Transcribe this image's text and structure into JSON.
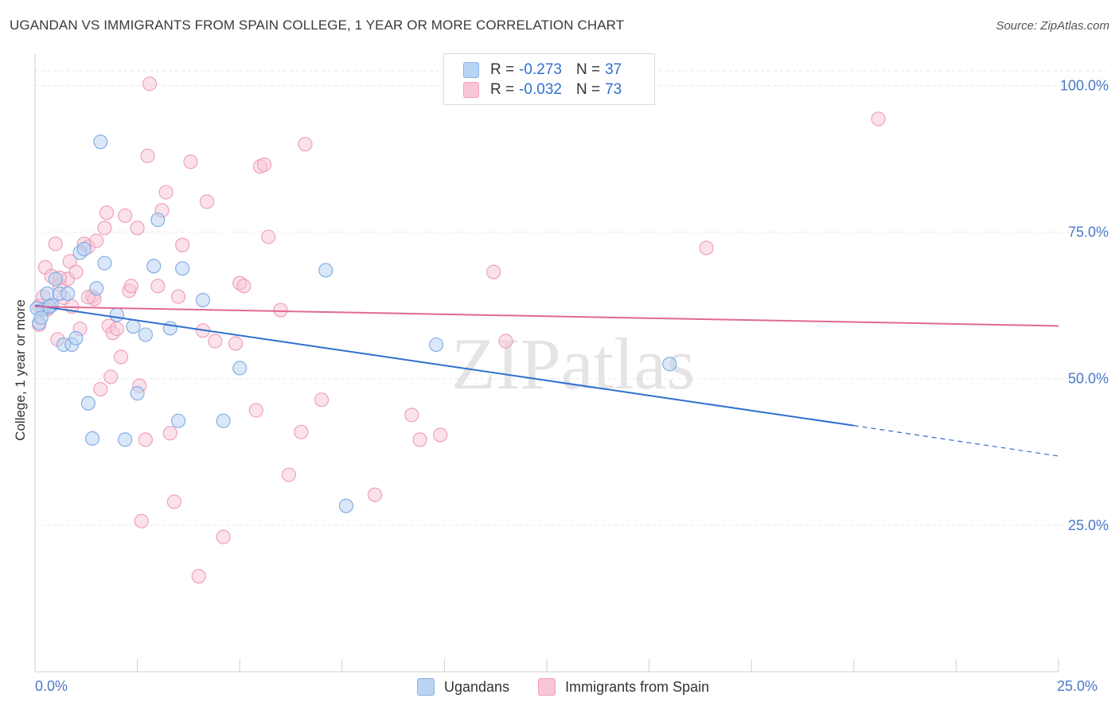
{
  "header": {
    "title": "UGANDAN VS IMMIGRANTS FROM SPAIN COLLEGE, 1 YEAR OR MORE CORRELATION CHART",
    "source": "Source: ZipAtlas.com"
  },
  "colors": {
    "blue": "#8ab4e8",
    "blue_line": "#2f6fd0",
    "pink": "#f2a0bc",
    "pink_line": "#e06a92",
    "tick_text": "#4a78c8"
  },
  "legend": {
    "rows": [
      {
        "r_label": "R =",
        "r_value": "-0.273",
        "n_label": "N =",
        "n_value": "37",
        "color": "#b9d3f3"
      },
      {
        "r_label": "R =",
        "r_value": "-0.032",
        "n_label": "N =",
        "n_value": "73",
        "color": "#f8c6d6"
      }
    ]
  },
  "watermark": "ZIPatlas",
  "chart_data": {
    "type": "scatter",
    "title": "UGANDAN VS IMMIGRANTS FROM SPAIN COLLEGE, 1 YEAR OR MORE CORRELATION CHART",
    "xlabel": "",
    "ylabel": "College, 1 year or more",
    "xlim": [
      0,
      25
    ],
    "ylim": [
      0,
      104
    ],
    "x_ticks": [
      "0.0%",
      "25.0%"
    ],
    "y_ticks": [
      {
        "value": 25,
        "label": "25.0%"
      },
      {
        "value": 50,
        "label": "50.0%"
      },
      {
        "value": 75,
        "label": "75.0%"
      },
      {
        "value": 100,
        "label": "100.0%"
      }
    ],
    "grid": true,
    "legend_position": "top-center",
    "series": [
      {
        "name": "Ugandans",
        "color": "#8ab4e8",
        "trend": {
          "x": [
            0,
            20
          ],
          "y": [
            62.5,
            42.0
          ],
          "dashed_to": [
            25,
            36.8
          ]
        },
        "points": [
          [
            0.1,
            59.5
          ],
          [
            0.2,
            61.8
          ],
          [
            0.3,
            64.5
          ],
          [
            0.4,
            62.5
          ],
          [
            0.5,
            67.0
          ],
          [
            0.6,
            64.5
          ],
          [
            0.7,
            55.8
          ],
          [
            0.8,
            64.5
          ],
          [
            0.9,
            55.8
          ],
          [
            1.0,
            56.9
          ],
          [
            1.1,
            71.5
          ],
          [
            1.2,
            72.1
          ],
          [
            1.3,
            45.8
          ],
          [
            1.4,
            39.8
          ],
          [
            1.5,
            65.4
          ],
          [
            1.6,
            90.4
          ],
          [
            1.7,
            69.7
          ],
          [
            2.0,
            60.9
          ],
          [
            2.2,
            39.6
          ],
          [
            2.4,
            58.9
          ],
          [
            2.5,
            47.5
          ],
          [
            2.7,
            57.5
          ],
          [
            2.9,
            69.2
          ],
          [
            3.0,
            77.1
          ],
          [
            3.3,
            58.6
          ],
          [
            3.5,
            42.8
          ],
          [
            3.6,
            68.8
          ],
          [
            4.1,
            63.4
          ],
          [
            4.6,
            42.8
          ],
          [
            5.0,
            51.8
          ],
          [
            7.1,
            68.5
          ],
          [
            7.6,
            28.3
          ],
          [
            9.8,
            55.8
          ],
          [
            15.5,
            52.5
          ],
          [
            0.05,
            62.0
          ],
          [
            0.15,
            60.4
          ],
          [
            0.35,
            62.3
          ]
        ]
      },
      {
        "name": "Immigrants from Spain",
        "color": "#f2a0bc",
        "trend": {
          "x": [
            0,
            25
          ],
          "y": [
            62.3,
            59.0
          ]
        },
        "points": [
          [
            0.1,
            59.2
          ],
          [
            0.1,
            62.4
          ],
          [
            0.2,
            64.0
          ],
          [
            0.25,
            69.0
          ],
          [
            0.3,
            62.0
          ],
          [
            0.4,
            67.5
          ],
          [
            0.5,
            73.0
          ],
          [
            0.55,
            56.7
          ],
          [
            0.6,
            66.0
          ],
          [
            0.7,
            63.8
          ],
          [
            0.8,
            67.0
          ],
          [
            0.85,
            70.0
          ],
          [
            0.9,
            62.3
          ],
          [
            1.0,
            68.2
          ],
          [
            1.1,
            58.5
          ],
          [
            1.2,
            73.0
          ],
          [
            1.3,
            72.5
          ],
          [
            1.4,
            64.0
          ],
          [
            1.45,
            63.6
          ],
          [
            1.5,
            73.5
          ],
          [
            1.6,
            48.2
          ],
          [
            1.7,
            75.7
          ],
          [
            1.75,
            78.3
          ],
          [
            1.8,
            59.0
          ],
          [
            1.85,
            50.3
          ],
          [
            1.9,
            57.8
          ],
          [
            2.0,
            58.5
          ],
          [
            2.1,
            53.7
          ],
          [
            2.2,
            77.8
          ],
          [
            2.3,
            65.0
          ],
          [
            2.35,
            65.8
          ],
          [
            2.5,
            75.7
          ],
          [
            2.55,
            48.8
          ],
          [
            2.7,
            39.6
          ],
          [
            2.75,
            88.0
          ],
          [
            2.6,
            25.7
          ],
          [
            2.8,
            100.3
          ],
          [
            3.0,
            65.8
          ],
          [
            3.1,
            78.7
          ],
          [
            3.2,
            81.8
          ],
          [
            3.3,
            40.7
          ],
          [
            3.4,
            29.0
          ],
          [
            3.5,
            64.0
          ],
          [
            3.6,
            72.8
          ],
          [
            3.8,
            87.0
          ],
          [
            4.0,
            16.3
          ],
          [
            4.1,
            58.2
          ],
          [
            4.2,
            80.2
          ],
          [
            4.4,
            56.4
          ],
          [
            4.6,
            23.0
          ],
          [
            4.9,
            56.0
          ],
          [
            5.0,
            66.3
          ],
          [
            5.1,
            65.8
          ],
          [
            5.5,
            86.2
          ],
          [
            5.6,
            86.5
          ],
          [
            5.7,
            74.2
          ],
          [
            5.4,
            44.6
          ],
          [
            6.0,
            61.7
          ],
          [
            6.2,
            33.6
          ],
          [
            6.5,
            40.9
          ],
          [
            6.6,
            90.0
          ],
          [
            7.0,
            46.4
          ],
          [
            8.3,
            30.2
          ],
          [
            9.2,
            43.8
          ],
          [
            9.4,
            39.6
          ],
          [
            9.9,
            40.4
          ],
          [
            11.2,
            68.2
          ],
          [
            11.5,
            56.4
          ],
          [
            16.4,
            72.3
          ],
          [
            20.6,
            94.3
          ],
          [
            0.3,
            61.8
          ],
          [
            0.6,
            67.2
          ],
          [
            1.3,
            63.9
          ]
        ]
      }
    ]
  },
  "bottom_legend": [
    {
      "label": "Ugandans",
      "color": "#b9d3f3"
    },
    {
      "label": "Immigrants from Spain",
      "color": "#f8c6d6"
    }
  ]
}
